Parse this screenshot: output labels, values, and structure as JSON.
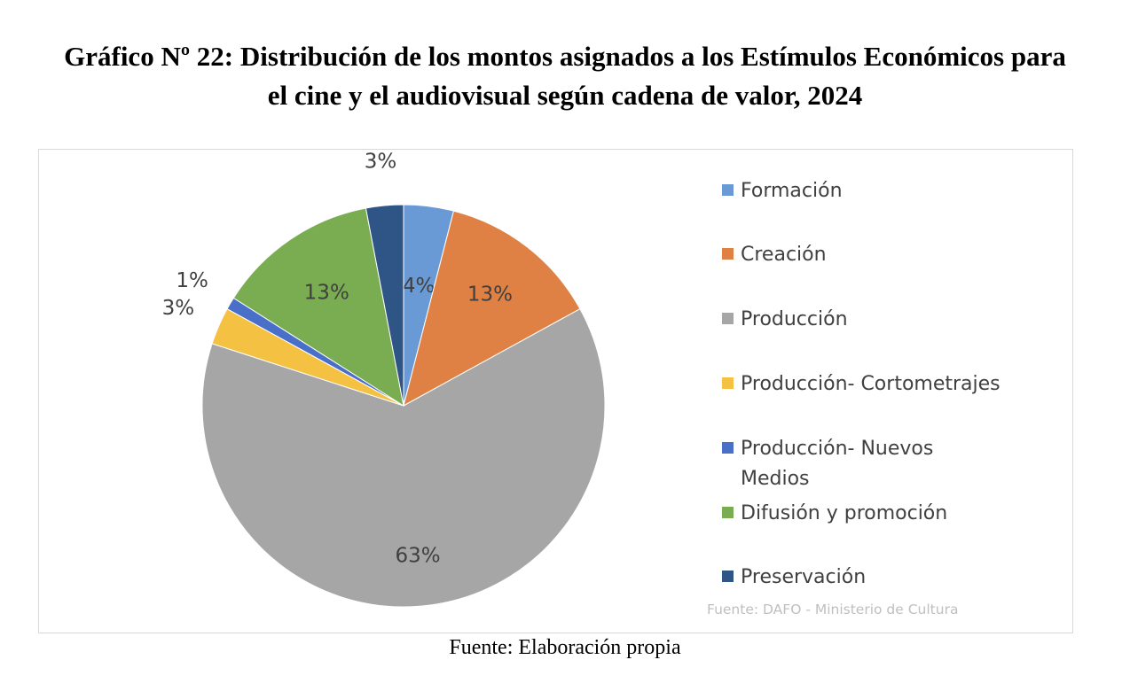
{
  "title_line1": "Gráfico Nº 22: Distribución de los montos asignados a los Estímulos Económicos para",
  "title_line2": "el cine y el audiovisual según cadena de valor, 2024",
  "caption": "Fuente: Elaboración propia",
  "chart_data": {
    "type": "pie",
    "title": "",
    "source_note": "Fuente: DAFO - Ministerio de Cultura",
    "unit": "%",
    "legend_position": "right",
    "slices": [
      {
        "label": "Formación",
        "value": 4,
        "display": "4%",
        "color": "#6a9ad6"
      },
      {
        "label": "Creación",
        "value": 13,
        "display": "13%",
        "color": "#df8144"
      },
      {
        "label": "Producción",
        "value": 63,
        "display": "63%",
        "color": "#a6a6a6"
      },
      {
        "label": "Producción- Cortometrajes",
        "value": 3,
        "display": "3%",
        "color": "#f4c142"
      },
      {
        "label": "Producción- Nuevos Medios",
        "value": 1,
        "display": "1%",
        "color": "#4a6fc8"
      },
      {
        "label": "Difusión y promoción",
        "value": 13,
        "display": "13%",
        "color": "#7aad52"
      },
      {
        "label": "Preservación",
        "value": 3,
        "display": "3%",
        "color": "#2e5585"
      }
    ]
  }
}
